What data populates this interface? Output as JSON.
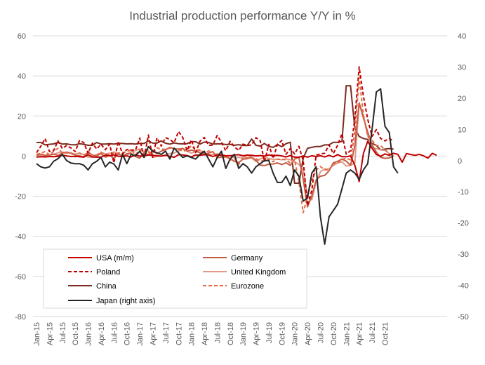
{
  "chart_data": {
    "type": "line",
    "title": "Industrial production performance Y/Y in %",
    "ylim_left": [
      -80,
      60
    ],
    "ylim_right": [
      -50,
      40
    ],
    "yticks_left": [
      60,
      40,
      20,
      0,
      -20,
      -40,
      -60,
      -80
    ],
    "yticks_right": [
      40,
      30,
      20,
      10,
      0,
      -10,
      -20,
      -30,
      -40,
      -50
    ],
    "xtick_labels": [
      "Jan-15",
      "Apr-15",
      "Jul-15",
      "Oct-15",
      "Jan-16",
      "Apr-16",
      "Jul-16",
      "Oct-16",
      "Jan-17",
      "Apr-17",
      "Jul-17",
      "Oct-17",
      "Jan-18",
      "Apr-18",
      "Jul-18",
      "Oct-18",
      "Jan-19",
      "Apr-19",
      "Jul-19",
      "Oct-19",
      "Jan-20",
      "Apr-20",
      "Jul-20",
      "Oct-20",
      "Jan-21",
      "Apr-21",
      "Jul-21",
      "Oct-21"
    ],
    "x_start": "Jan-15",
    "grid": "horizontal",
    "legend_position": "bottom-left",
    "series": [
      {
        "name": "USA (m/m)",
        "color": "#c00000",
        "dash": "solid",
        "axis": "left",
        "values": [
          -0.5,
          -0.3,
          -0.4,
          -0.2,
          -0.3,
          -0.1,
          0.5,
          0.1,
          -0.2,
          -0.1,
          -0.3,
          -0.5,
          0.7,
          -0.4,
          -0.5,
          -0.5,
          0.5,
          0.2,
          0.6,
          -0.1,
          -0.2,
          0.1,
          -0.4,
          0.6,
          0.0,
          0.1,
          0.6,
          0.4,
          0.2,
          0.0,
          0.4,
          -0.1,
          -0.6,
          0.7,
          0.6,
          0.3,
          -0.4,
          0.6,
          0.4,
          0.7,
          0.6,
          -0.2,
          0.6,
          0.4,
          0.2,
          0.1,
          0.6,
          0.7,
          0.2,
          0.5,
          0.4,
          0.1,
          0.3,
          0.0,
          0.6,
          0.2,
          0.4,
          0.1,
          -0.4,
          0.3,
          -0.5,
          -0.6,
          0.1,
          -0.5,
          0.2,
          -0.2,
          0.2,
          -0.4,
          0.4,
          -0.4,
          0.8,
          -0.3,
          -0.3,
          0.1,
          -4.5,
          -12.7,
          1.4,
          7.4,
          3.9,
          0.8,
          -0.1,
          1.1,
          0.4,
          1.4,
          0.9,
          -3.0,
          1.3,
          0.8,
          0.4,
          0.9,
          0.1,
          -1.0,
          1.4,
          0.4
        ]
      },
      {
        "name": "Germany",
        "color": "#c55a44",
        "dash": "solid",
        "axis": "left",
        "values": [
          0.3,
          1.0,
          0.4,
          0.6,
          1.0,
          0.3,
          1.5,
          2.0,
          1.5,
          0.5,
          0.2,
          -0.5,
          2.0,
          0.5,
          0.3,
          1.2,
          -0.5,
          0.4,
          -1.1,
          1.2,
          0.0,
          1.2,
          1.4,
          -0.2,
          -1.0,
          1.8,
          0.6,
          2.9,
          1.2,
          2.5,
          3.2,
          4.4,
          3.7,
          3.5,
          3.8,
          2.5,
          3.0,
          2.5,
          1.7,
          0.9,
          1.6,
          2.3,
          -0.8,
          -0.5,
          -0.4,
          -1.2,
          -2.6,
          -3.2,
          -1.5,
          -1.3,
          -0.5,
          -2.0,
          -4.5,
          -4.7,
          -4.0,
          -3.9,
          -3.4,
          -4.2,
          -3.3,
          -4.6,
          -1.5,
          -0.5,
          -11.5,
          -25.3,
          -19.8,
          -11.9,
          -10.0,
          -9.6,
          -7.3,
          -3.3,
          -2.6,
          -1.5,
          -2.5,
          -4.6,
          5.0,
          26.5,
          19.0,
          12.0,
          5.6,
          2.0,
          -0.6,
          -1.1,
          -0.9,
          0.0
        ]
      },
      {
        "name": "Poland",
        "color": "#c00000",
        "dash": "dash",
        "axis": "left",
        "values": [
          1.7,
          4.9,
          8.8,
          2.3,
          2.8,
          7.6,
          3.8,
          5.3,
          4.1,
          2.3,
          7.8,
          6.7,
          1.4,
          6.5,
          3.5,
          6.0,
          3.2,
          6.0,
          -3.4,
          7.4,
          1.0,
          3.3,
          3.1,
          3.0,
          9.0,
          -1.1,
          10.5,
          -0.6,
          9.1,
          5.0,
          9.2,
          8.3,
          6.7,
          12.3,
          9.3,
          2.7,
          8.1,
          1.8,
          7.4,
          9.3,
          5.4,
          5.5,
          10.3,
          6.9,
          2.7,
          7.4,
          4.7,
          2.8,
          6.0,
          5.3,
          5.6,
          9.2,
          7.7,
          -2.8,
          5.9,
          -1.2,
          5.8,
          7.8,
          0.9,
          3.8,
          1.1,
          4.9,
          -2.3,
          -24.6,
          -17.0,
          0.5,
          1.1,
          1.4,
          5.6,
          1.3,
          5.4,
          11.2,
          1.0,
          2.7,
          18.5,
          44.5,
          29.8,
          18.4,
          9.8,
          13.2,
          8.8,
          7.6,
          8.8,
          7.5
        ]
      },
      {
        "name": "United Kingdom",
        "color": "#e09a88",
        "dash": "solid",
        "axis": "left",
        "values": [
          0.9,
          0.3,
          0.1,
          0.4,
          0.9,
          1.7,
          2.0,
          1.6,
          1.6,
          1.0,
          1.6,
          0.7,
          -0.5,
          -0.5,
          -0.2,
          1.9,
          1.1,
          1.4,
          2.1,
          0.8,
          0.3,
          0.2,
          2.3,
          2.7,
          3.6,
          2.2,
          2.9,
          -0.6,
          -0.2,
          0.1,
          0.6,
          1.3,
          1.6,
          2.5,
          3.9,
          2.5,
          1.5,
          2.2,
          2.9,
          1.4,
          0.8,
          0.8,
          1.1,
          1.1,
          0.1,
          0.4,
          -0.9,
          -0.6,
          -0.9,
          0.6,
          -0.9,
          -2.7,
          -1.4,
          -0.6,
          -1.2,
          -1.6,
          -1.5,
          -1.8,
          -1.4,
          -1.8,
          -2.8,
          -4.2,
          -6.7,
          -20.1,
          -21.8,
          -12.9,
          -7.8,
          -6.4,
          -6.4,
          -4.6,
          -3.5,
          -2.8,
          -5.0,
          -4.5,
          -3.6,
          26.4,
          20.2,
          10.2,
          4.1,
          3.7,
          3.1,
          2.9,
          1.3,
          0.1
        ]
      },
      {
        "name": "China",
        "color": "#7b2c20",
        "dash": "solid",
        "axis": "left",
        "values": [
          6.8,
          6.8,
          5.6,
          5.9,
          6.1,
          6.8,
          6.0,
          6.1,
          5.7,
          5.6,
          6.2,
          5.9,
          5.4,
          5.4,
          6.8,
          6.0,
          6.0,
          6.2,
          6.0,
          6.3,
          6.3,
          6.1,
          6.2,
          6.0,
          6.3,
          6.3,
          7.6,
          6.5,
          6.5,
          7.6,
          6.4,
          6.0,
          6.6,
          6.2,
          6.1,
          6.2,
          7.2,
          7.2,
          6.0,
          7.0,
          6.8,
          6.0,
          6.1,
          6.1,
          5.8,
          5.9,
          5.4,
          5.7,
          5.3,
          5.3,
          8.5,
          5.4,
          5.0,
          6.3,
          4.8,
          4.4,
          5.8,
          4.7,
          6.2,
          6.9,
          -13.5,
          -13.5,
          -1.1,
          3.9,
          4.4,
          4.8,
          4.8,
          5.6,
          5.6,
          6.9,
          6.9,
          7.3,
          35.1,
          35.1,
          14.1,
          9.8,
          8.8,
          8.3,
          6.4,
          5.3,
          3.1,
          3.5,
          3.8,
          3.5
        ]
      },
      {
        "name": "Eurozone",
        "color": "#e06c47",
        "dash": "dash",
        "axis": "left",
        "values": [
          0.9,
          1.5,
          2.3,
          0.6,
          2.4,
          3.9,
          1.6,
          1.6,
          1.5,
          -0.3,
          1.5,
          0.1,
          2.6,
          0.4,
          0.6,
          2.0,
          0.7,
          0.8,
          1.6,
          1.5,
          1.9,
          2.0,
          3.3,
          0.6,
          3.3,
          1.2,
          1.9,
          1.4,
          4.1,
          3.5,
          3.4,
          4.0,
          3.7,
          3.3,
          2.5,
          3.0,
          5.2,
          2.9,
          3.2,
          1.7,
          2.6,
          2.0,
          -0.7,
          0.7,
          -0.2,
          -2.0,
          -1.3,
          -4.2,
          -0.8,
          -0.9,
          -0.9,
          -1.3,
          -2.2,
          -2.4,
          -1.6,
          -2.8,
          -1.6,
          -1.6,
          -1.8,
          -3.5,
          -1.8,
          -12.9,
          -28.2,
          -20.1,
          -12.1,
          -6.9,
          -5.2,
          -6.8,
          -6.9,
          -3.8,
          -3.4,
          -1.6,
          -1.1,
          -1.8,
          11.6,
          39.3,
          20.5,
          9.8,
          8.0,
          5.3,
          5.2,
          3.3,
          1.1,
          0.9
        ]
      },
      {
        "name": "Japan (right axis)",
        "color": "#262626",
        "dash": "solid",
        "axis": "right",
        "values": [
          -1.0,
          -2.0,
          -2.4,
          -2.0,
          -0.2,
          0.6,
          2.0,
          0.0,
          -0.8,
          -1.0,
          -1.0,
          -1.5,
          -3.0,
          -1.0,
          -0.2,
          1.0,
          -2.0,
          -0.5,
          -1.1,
          -3.0,
          2.0,
          -1.0,
          2.0,
          1.5,
          3.0,
          1.0,
          4.5,
          3.0,
          2.5,
          2.0,
          3.0,
          0.5,
          4.0,
          2.5,
          1.0,
          1.5,
          1.0,
          0.5,
          2.0,
          3.0,
          0.5,
          -2.0,
          1.0,
          3.0,
          -2.5,
          0.5,
          2.0,
          -2.5,
          -1.0,
          -2.0,
          -4.0,
          -2.0,
          -1.0,
          0.0,
          0.0,
          -4.0,
          -7.0,
          -7.0,
          -5.0,
          -8.0,
          -3.0,
          -5.0,
          -13.0,
          -12.0,
          -4.0,
          -2.0,
          -18.0,
          -26.8,
          -18.0,
          -16.0,
          -14.0,
          -9.0,
          -4.0,
          -3.0,
          -4.0,
          -6.0,
          -3.0,
          -1.0,
          10.0,
          22.0,
          23.0,
          11.0,
          9.0,
          -2.0,
          -4.0
        ]
      }
    ]
  }
}
